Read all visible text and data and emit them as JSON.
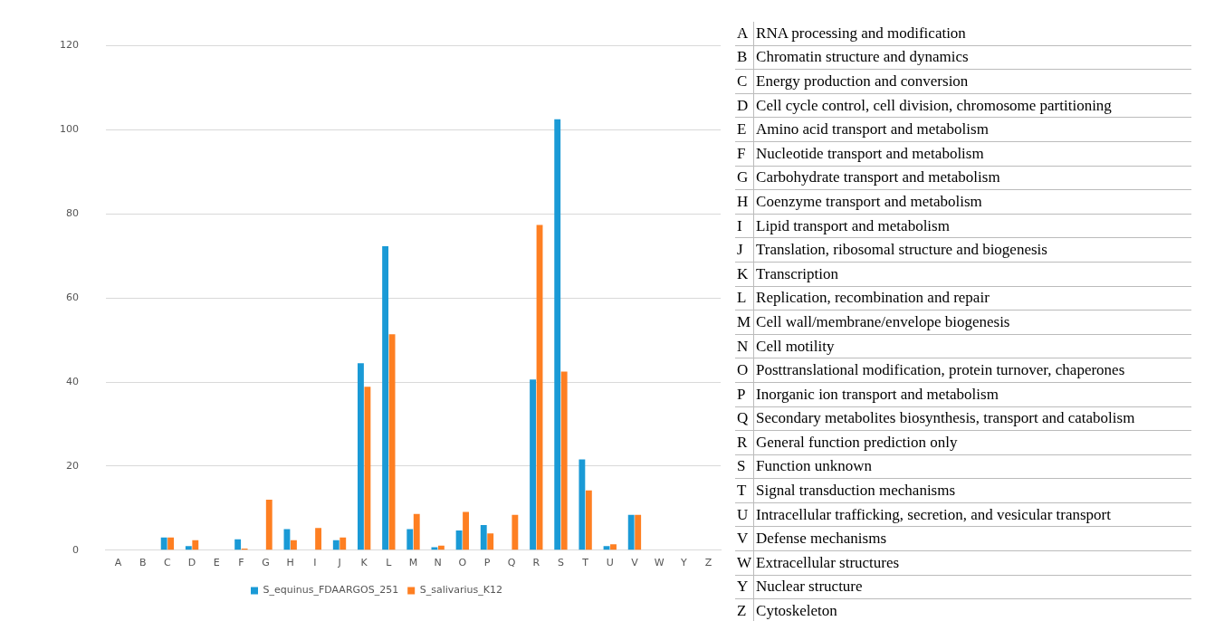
{
  "chart_data": [
    {
      "type": "bar",
      "categories": [
        "A",
        "B",
        "C",
        "D",
        "E",
        "F",
        "G",
        "H",
        "I",
        "J",
        "K",
        "L",
        "M",
        "N",
        "O",
        "P",
        "Q",
        "R",
        "S",
        "T",
        "U",
        "V",
        "W",
        "Y",
        "Z"
      ],
      "series": [
        {
          "name": "S_equinus_FDAARGOS_251",
          "color": "#1a9ad6",
          "values": [
            0,
            0,
            3.0,
            1.0,
            0,
            2.6,
            0,
            5.0,
            0,
            2.4,
            44.5,
            72.3,
            5.0,
            0.7,
            4.7,
            6.0,
            0,
            40.6,
            102.5,
            21.6,
            1.0,
            8.4,
            0,
            0,
            0
          ]
        },
        {
          "name": "S_salivarius_K12",
          "color": "#fe7f22",
          "values": [
            0,
            0,
            3.0,
            2.4,
            0,
            0.4,
            12.0,
            2.4,
            5.3,
            3.0,
            38.9,
            51.4,
            8.6,
            1.1,
            9.1,
            4.0,
            8.4,
            77.4,
            42.5,
            14.2,
            1.4,
            8.4,
            0,
            0,
            0
          ]
        }
      ],
      "ylim": [
        0,
        120
      ],
      "yticks": [
        0,
        20,
        40,
        60,
        80,
        100,
        120
      ],
      "grid": "y",
      "legend": "bottom"
    },
    {
      "type": "other",
      "categories": [
        "A",
        "B",
        "C",
        "D",
        "E",
        "F",
        "G",
        "H",
        "I",
        "J",
        "K",
        "L",
        "M",
        "N",
        "O",
        "P",
        "Q",
        "R",
        "S",
        "T",
        "U",
        "V",
        "W",
        "Y",
        "Z"
      ],
      "annotations": [
        "RNA processing and modification",
        "Chromatin structure and dynamics",
        "Energy production and conversion",
        "Cell cycle control, cell division, chromosome partitioning",
        "Amino acid transport and metabolism",
        "Nucleotide transport and metabolism",
        "Carbohydrate transport and metabolism",
        "Coenzyme transport and metabolism",
        "Lipid transport and metabolism",
        "Translation, ribosomal structure and biogenesis",
        "Transcription",
        "Replication, recombination and repair",
        "Cell wall/membrane/envelope biogenesis",
        "Cell motility",
        "Posttranslational modification, protein turnover, chaperones",
        "Inorganic ion transport and metabolism",
        "Secondary metabolites biosynthesis, transport and catabolism",
        "General function prediction only",
        "Function unknown",
        "Signal transduction mechanisms",
        "Intracellular trafficking, secretion, and vesicular transport",
        "Defense mechanisms",
        "Extracellular structures",
        "Nuclear structure",
        "Cytoskeleton"
      ]
    }
  ]
}
